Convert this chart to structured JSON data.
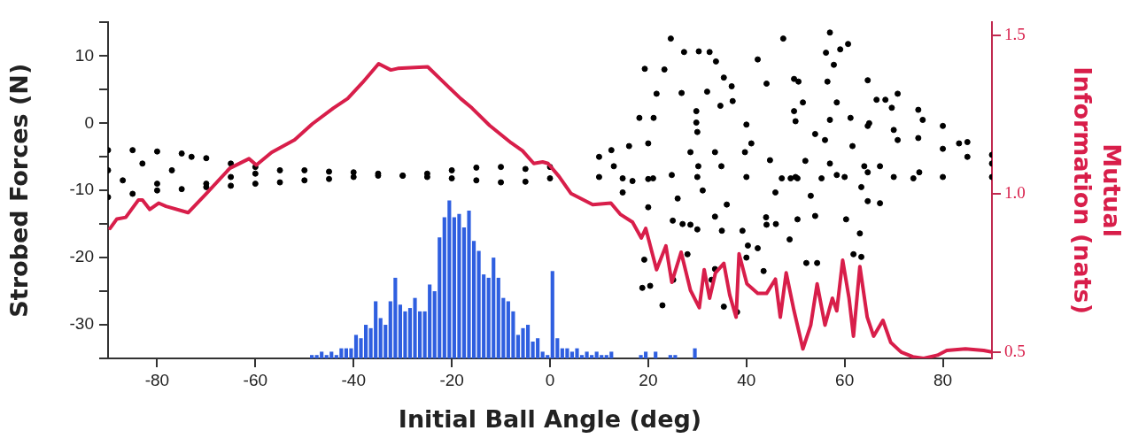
{
  "chart_data": {
    "type": "scatter",
    "xlabel": "Initial Ball Angle (deg)",
    "ylabel": "Strobed Forces (N)",
    "y2label": "Mutual Information (nats)",
    "xlim": [
      -90,
      90
    ],
    "xticks": [
      -80,
      -60,
      -40,
      -20,
      0,
      20,
      40,
      60,
      80
    ],
    "ylim": [
      -35,
      15
    ],
    "yticks": [
      {
        "value": -35,
        "label": null
      },
      -30,
      {
        "value": -25,
        "label": null
      },
      -20,
      {
        "value": -15,
        "label": null
      },
      -10,
      {
        "value": -5,
        "label": null
      },
      0,
      {
        "value": 5,
        "label": null
      },
      10,
      {
        "value": 15,
        "label": null
      }
    ],
    "y2lim": [
      0.48,
      1.54
    ],
    "y2ticks": [
      0.5,
      {
        "value": 1,
        "label": "1.0"
      },
      1.5
    ],
    "grid": false,
    "series": [
      {
        "type": "bar",
        "color": "#2f5fe0",
        "x": [
          -48.5,
          -47.5,
          -46.5,
          -45.5,
          -44.5,
          -43.5,
          -42.5,
          -41.5,
          -40.5,
          -39.5,
          -38.5,
          -37.5,
          -36.5,
          -35.5,
          -34.5,
          -33.5,
          -32.5,
          -31.5,
          -30.5,
          -29.5,
          -28.5,
          -27.5,
          -26.5,
          -25.5,
          -24.5,
          -23.5,
          -22.5,
          -21.5,
          -20.5,
          -19.5,
          -18.5,
          -17.5,
          -16.5,
          -15.5,
          -14.5,
          -13.5,
          -12.5,
          -11.5,
          -10.5,
          -9.5,
          -8.5,
          -7.5,
          -6.5,
          -5.5,
          -4.5,
          -3.5,
          -2.5,
          -1.5,
          -0.5,
          0.5,
          1.5,
          2.5,
          3.5,
          4.5,
          5.5,
          6.5,
          7.5,
          8.5,
          9.5,
          10.5,
          11.5,
          12.5,
          18.5,
          19.5,
          21.5,
          24.5,
          25.5,
          29.5
        ],
        "base": [
          -35,
          -35,
          -35,
          -35,
          -35,
          -35,
          -35,
          -35,
          -35,
          -35,
          -35,
          -35,
          -35,
          -35,
          -35,
          -35,
          -35,
          -35,
          -35,
          -35,
          -35,
          -35,
          -35,
          -35,
          -35,
          -35,
          -35,
          -35,
          -35,
          -35,
          -35,
          -35,
          -35,
          -35,
          -35,
          -35,
          -35,
          -35,
          -35,
          -35,
          -35,
          -35,
          -35,
          -35,
          -35,
          -35,
          -35,
          -35,
          -35,
          -35,
          -35,
          -35,
          -35,
          -35,
          -35,
          -35,
          -35,
          -35,
          -35,
          -35,
          -35,
          -35,
          -35,
          -35,
          -35,
          -35,
          -35,
          -35
        ],
        "values": [
          0.5,
          0.5,
          1,
          0.5,
          1,
          0.5,
          1.5,
          1.5,
          1.5,
          3.5,
          3,
          5,
          4.5,
          8.5,
          6,
          5,
          8.5,
          12,
          8,
          7,
          7.5,
          9,
          7,
          7,
          11,
          10,
          18,
          21,
          23.5,
          21,
          21.5,
          19.5,
          22,
          17.5,
          16,
          12.5,
          12,
          15,
          12,
          9,
          8.5,
          7,
          3.5,
          4.5,
          5,
          2.5,
          3,
          1,
          0.5,
          13,
          3,
          1.5,
          1.5,
          1,
          1.5,
          0.5,
          1,
          0.5,
          1,
          0.5,
          0.5,
          1,
          0.5,
          1,
          1,
          0.5,
          0.5,
          1.5
        ]
      },
      {
        "color": "#000000",
        "marker": "circle",
        "x": [
          -90,
          -85,
          -80,
          -75,
          -70,
          -65,
          -60,
          -55,
          -50,
          -45,
          -40,
          -35,
          -30,
          -25,
          -20,
          -15,
          -10,
          -5,
          -90,
          -85,
          -80,
          -75,
          -70,
          -65,
          -60,
          -55,
          -50,
          -45,
          -40,
          -35,
          -30,
          -25,
          -20,
          -15,
          -10,
          -5,
          -90,
          -87,
          -83,
          -80,
          -77,
          -73,
          -70,
          -65,
          -60,
          0,
          10,
          20,
          30,
          40,
          50,
          57,
          65,
          70,
          75,
          80,
          85,
          90,
          0,
          10,
          20,
          30,
          40,
          50,
          60,
          70,
          80,
          90,
          14.8,
          20,
          25,
          30,
          35,
          39.2,
          44,
          49,
          57,
          64.7,
          74,
          21,
          27,
          33.6,
          40,
          46,
          50.4,
          52,
          58.4,
          64.7,
          70.8,
          75,
          80,
          85,
          90,
          64.7,
          69.6,
          75.9,
          83.3,
          70.8,
          75.2,
          24.6,
          27.3,
          30.3,
          32.5,
          19.3,
          23.3,
          33.8,
          42.3,
          47.5,
          57,
          56.2,
          59.1,
          60.7,
          21.7,
          26.8,
          32,
          35.4,
          37,
          37.2,
          44.1,
          50.6,
          49.7,
          57.8,
          56.5,
          18.2,
          21.1,
          29.8,
          29.8,
          34.7,
          51.5,
          49.7,
          61.2,
          66.5,
          68.3,
          19.2,
          18.8,
          20.4,
          22.9,
          25.1,
          28,
          35.4,
          38.1,
          40.3,
          42.3,
          43.5,
          44.1,
          48.8,
          50.4,
          52.2,
          54.4,
          53.1,
          54,
          60.3,
          61.8,
          63.4,
          63.4,
          64.7,
          67.2,
          63.1,
          32.9,
          24.8,
          28.6,
          30.2,
          33.6,
          34.9,
          39.7,
          41,
          44.8,
          45.9,
          47.2,
          26,
          31.1,
          36,
          33.6,
          28.6,
          55.3,
          58.4,
          61.6,
          64,
          67.2,
          56,
          54,
          14.8,
          13,
          16.8,
          12.5,
          16.1
        ],
        "values": [
          -4,
          -4,
          -4.2,
          -4.5,
          -5.2,
          -6,
          -6.5,
          -7,
          -7,
          -7.2,
          -7.3,
          -7.5,
          -7.8,
          -7.5,
          -7,
          -6.6,
          -6.5,
          -6.8,
          -11,
          -10.5,
          -10,
          -9.8,
          -9.5,
          -9.3,
          -9,
          -8.8,
          -8.5,
          -8.3,
          -8,
          -7.8,
          -7.8,
          -8,
          -8.2,
          -8.5,
          -8.8,
          -8.7,
          -7,
          -8.5,
          -6,
          -9,
          -7,
          -5,
          -9,
          -8,
          -7.5,
          -6.5,
          -5,
          -3,
          -1.3,
          -0.2,
          0.3,
          0.5,
          0,
          -1,
          -2.2,
          -3.8,
          -5,
          -6,
          -8.2,
          -8,
          -8.3,
          -8,
          -8,
          -8,
          -8,
          -8,
          -8,
          -8,
          -10.3,
          -12.5,
          -14.5,
          -15.8,
          -16,
          -16,
          -14,
          -8.2,
          -6,
          -7.3,
          -8.2,
          -8.2,
          -15,
          -21.7,
          -20,
          -15,
          -8.2,
          -5.6,
          3.1,
          6.4,
          4.4,
          2,
          -0.4,
          -2.8,
          -4.7,
          -0.4,
          2.3,
          0.5,
          -3,
          -2.5,
          -7.3,
          12.6,
          10.6,
          10.7,
          10.6,
          8.1,
          8,
          9.2,
          9.5,
          12.6,
          13.5,
          10.5,
          11,
          11.8,
          4.4,
          4.5,
          4.7,
          6.8,
          5.5,
          3.3,
          5.9,
          6.2,
          6.6,
          8.7,
          6.2,
          0.8,
          0.8,
          1.8,
          0.1,
          2.6,
          3.1,
          1.8,
          0.8,
          3.5,
          3.5,
          -20.3,
          -24.5,
          -24.2,
          -27.1,
          -23.3,
          -19.5,
          -27.3,
          -28.1,
          -18.2,
          -18.6,
          -22,
          -15.1,
          -17.3,
          -14.3,
          -20.8,
          -20.8,
          -10.8,
          -13.8,
          -14.3,
          -19.5,
          -19.9,
          -9.5,
          -11.6,
          -11.9,
          -16.4,
          -23.3,
          -7.7,
          -4.3,
          -6.4,
          -4.3,
          -6.4,
          -4.3,
          -3,
          -5.5,
          -10.3,
          -8.2,
          -11.2,
          -10,
          -12.1,
          -13.9,
          -15.1,
          -8.2,
          -7.7,
          -3.4,
          -6.4,
          -6.4,
          -2.5,
          -1.6,
          -8.2,
          -6.4,
          -8.6,
          -4,
          -3.4
        ]
      },
      {
        "type": "line",
        "axis": "y2",
        "color": "#d81e4a",
        "marker": "none",
        "x": [
          -89.6,
          -88.2,
          -86.4,
          -83.8,
          -83,
          -81.5,
          -79.7,
          -78.2,
          -73.7,
          -70,
          -65.2,
          -61.3,
          -59.8,
          -56.7,
          -52,
          -48.4,
          -44.1,
          -41.2,
          -38.2,
          -34.9,
          -32.4,
          -31,
          -24.9,
          -21.9,
          -18.2,
          -15.9,
          -12.3,
          -7.9,
          -5.6,
          -3.3,
          -1.5,
          -0.4,
          1.8,
          4.3,
          8.7,
          12.4,
          14.3,
          16.8,
          18.6,
          19.5,
          21.7,
          23.6,
          24.8,
          26.7,
          28.6,
          30.4,
          31.4,
          32.5,
          33.7,
          35.4,
          36.6,
          37.9,
          38.5,
          40.1,
          42.3,
          44.1,
          45.9,
          46.9,
          48.1,
          49.7,
          51.5,
          53.1,
          54.4,
          56,
          57.5,
          58.4,
          59.6,
          60.9,
          61.8,
          63.1,
          64.6,
          65.9,
          67.8,
          69.4,
          71.5,
          73.9,
          76.1,
          78.9,
          80.8,
          84.6,
          88.3,
          90
        ],
        "values": [
          0.89,
          0.92,
          0.925,
          0.98,
          0.98,
          0.95,
          0.97,
          0.96,
          0.94,
          1.0,
          1.08,
          1.11,
          1.09,
          1.13,
          1.17,
          1.22,
          1.27,
          1.3,
          1.35,
          1.41,
          1.39,
          1.395,
          1.4,
          1.355,
          1.3,
          1.27,
          1.215,
          1.16,
          1.135,
          1.095,
          1.1,
          1.095,
          1.055,
          1.0,
          0.965,
          0.97,
          0.935,
          0.91,
          0.86,
          0.89,
          0.76,
          0.835,
          0.72,
          0.815,
          0.695,
          0.64,
          0.76,
          0.67,
          0.75,
          0.78,
          0.68,
          0.61,
          0.81,
          0.715,
          0.685,
          0.685,
          0.73,
          0.61,
          0.75,
          0.63,
          0.51,
          0.585,
          0.715,
          0.585,
          0.67,
          0.63,
          0.79,
          0.67,
          0.55,
          0.77,
          0.61,
          0.55,
          0.6,
          0.53,
          0.5,
          0.485,
          0.48,
          0.49,
          0.505,
          0.51,
          0.505,
          0.5
        ]
      }
    ]
  }
}
